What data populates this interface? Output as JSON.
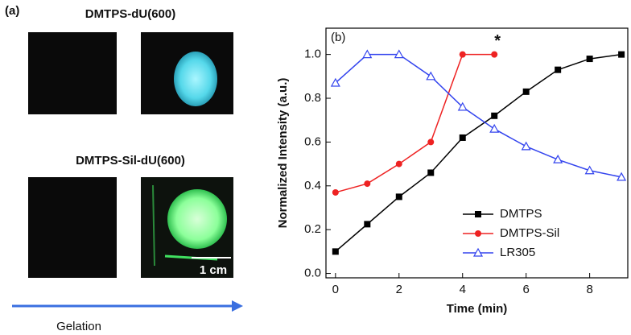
{
  "panel_a": {
    "label": "(a)",
    "top_title": "DMTPS-dU(600)",
    "bottom_title": "DMTPS-Sil-dU(600)",
    "scale_bar": "1 cm",
    "arrow_label": "Gelation"
  },
  "chart_data": {
    "type": "line",
    "panel_label": "(b)",
    "annotation": "*",
    "x_label": "Time (min)",
    "y_label": "Normalized Intensity (a.u.)",
    "x": [
      0,
      1,
      2,
      3,
      4,
      5,
      6,
      7,
      8,
      9
    ],
    "series": [
      {
        "name": "DMTPS",
        "color": "#000000",
        "marker": "square",
        "values": [
          0.1,
          0.225,
          0.35,
          0.46,
          0.62,
          0.72,
          0.83,
          0.93,
          0.98,
          1.0
        ]
      },
      {
        "name": "DMTPS-Sil",
        "color": "#ee2222",
        "marker": "circle",
        "values": [
          0.37,
          0.41,
          0.5,
          0.6,
          1.0,
          1.0,
          null,
          null,
          null,
          null
        ]
      },
      {
        "name": "LR305",
        "color": "#3344ee",
        "marker": "triangle-open",
        "values": [
          0.87,
          1.0,
          1.0,
          0.9,
          0.76,
          0.66,
          0.58,
          0.52,
          0.47,
          0.44
        ]
      }
    ],
    "xlim": [
      -0.3,
      9.2
    ],
    "ylim": [
      -0.02,
      1.12
    ],
    "xticks": [
      0,
      2,
      4,
      6,
      8
    ],
    "yticks": [
      {
        "value": 0,
        "label": "0.0"
      },
      0.2,
      0.4,
      0.6,
      0.8,
      {
        "value": 1,
        "label": "1.0"
      }
    ],
    "legend": "lower right"
  }
}
